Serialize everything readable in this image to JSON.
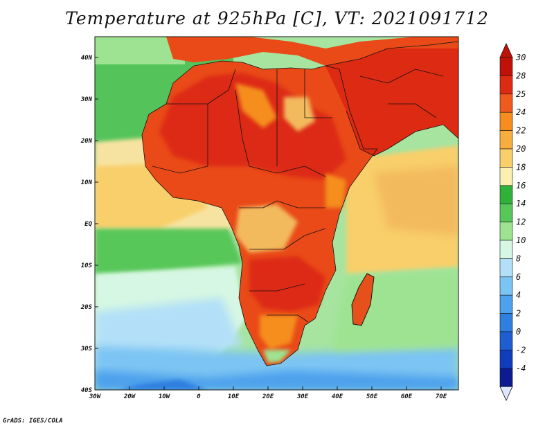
{
  "title": "Temperature at 925hPa [C], VT: 2021091712",
  "credit": "GrADS: IGES/COLA",
  "map": {
    "lon_range": [
      -30,
      75
    ],
    "lat_range": [
      -40,
      45
    ],
    "x_ticks": [
      "30W",
      "20W",
      "10W",
      "0",
      "10E",
      "20E",
      "30E",
      "40E",
      "50E",
      "60E",
      "70E"
    ],
    "y_ticks": [
      "40N",
      "30N",
      "20N",
      "10N",
      "EQ",
      "10S",
      "20S",
      "30S",
      "40S"
    ],
    "regions": [
      {
        "name": "ocean-north-atlantic",
        "color": "#54c45a"
      },
      {
        "name": "ocean-tropical-atlantic",
        "color": "#f7e3a1"
      },
      {
        "name": "ocean-south-atlantic",
        "color": "#a6e4a0"
      },
      {
        "name": "ocean-cold-south",
        "color": "#aad0f2"
      },
      {
        "name": "indian-ocean-north",
        "color": "#f3ba5d"
      },
      {
        "name": "indian-ocean-south",
        "color": "#a6e4a0"
      },
      {
        "name": "sahara-arabia-hot",
        "color": "#dd2a12"
      },
      {
        "name": "madagascar",
        "color": "#e6511b"
      }
    ]
  },
  "colorbar": {
    "labels": [
      "30",
      "28",
      "25",
      "24",
      "22",
      "20",
      "18",
      "16",
      "14",
      "12",
      "10",
      "8",
      "6",
      "4",
      "2",
      "0",
      "-2",
      "-4"
    ],
    "colors": [
      "#c01108",
      "#dd2a12",
      "#ef5a1e",
      "#f58e1f",
      "#f7ae3f",
      "#f8cf6a",
      "#fbf0b0",
      "#2fb13a",
      "#58c75a",
      "#9de391",
      "#d6f7e3",
      "#b3e0f8",
      "#7cc4f3",
      "#4ea1ec",
      "#2f7fe0",
      "#1f5ed0",
      "#103dbb",
      "#0c1b8f"
    ],
    "top_color": "#c01108",
    "bottom_color": "#dfe6ff"
  }
}
